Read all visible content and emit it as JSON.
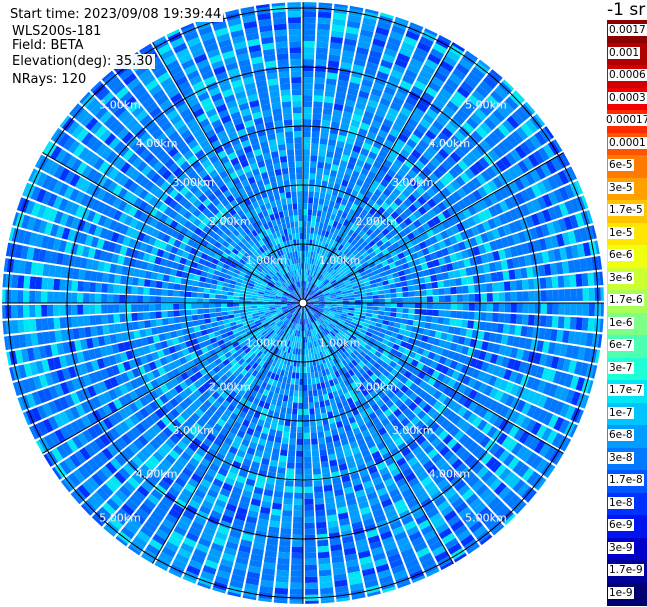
{
  "info": {
    "start_time": "Start time: 2023/09/08 19:39:44",
    "instrument": "WLS200s-181",
    "field": "Field: BETA",
    "elevation": "Elevation(deg): 35.30",
    "nrays": "NRays: 120"
  },
  "chart_data": {
    "type": "heatmap",
    "projection": "polar PPI",
    "field": "BETA",
    "elevation_deg": 35.3,
    "n_rays": 120,
    "range_rings_km": [
      1,
      2,
      3,
      4,
      5
    ],
    "ring_labels": [
      "1.00km",
      "2.00km",
      "3.00km",
      "4.00km",
      "5.00km"
    ],
    "spoke_interval_deg": 30,
    "max_range_km": 5.1,
    "dominant_values": "mostly 1e-8 to 1e-7 (blue to cyan)",
    "colorbar": {
      "title": "-1 sr",
      "scale": "log",
      "labels": [
        "0.0017",
        "0.001",
        "0.0006",
        "0.0003",
        "0.00017",
        "0.0001",
        "6e-5",
        "3e-5",
        "1.7e-5",
        "1e-5",
        "6e-6",
        "3e-6",
        "1.7e-6",
        "1e-6",
        "6e-7",
        "3e-7",
        "1.7e-7",
        "1e-7",
        "6e-8",
        "3e-8",
        "1.7e-8",
        "1e-8",
        "6e-9",
        "3e-9",
        "1.7e-9",
        "1e-9"
      ],
      "colors": [
        "#8b0000",
        "#b00000",
        "#d00000",
        "#f00000",
        "#ff2a00",
        "#ff5500",
        "#ff7a00",
        "#ffa000",
        "#ffc400",
        "#ffe600",
        "#f0ff10",
        "#ccff30",
        "#a8ff55",
        "#7dff88",
        "#4dffb0",
        "#1fffd6",
        "#00e6f5",
        "#00c4ff",
        "#009cff",
        "#0078ff",
        "#0056ff",
        "#0032ff",
        "#0014ee",
        "#0000c8",
        "#00009a",
        "#000070"
      ]
    }
  }
}
